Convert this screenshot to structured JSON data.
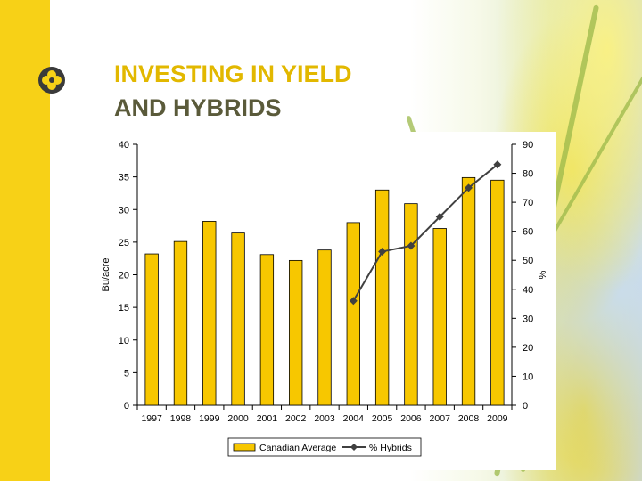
{
  "slide": {
    "title_line1": "INVESTING IN YIELD",
    "title_line2": "AND HYBRIDS",
    "colors": {
      "accent": "#f7d117",
      "title1": "#e2b800",
      "title2": "#5a5a3a"
    }
  },
  "chart_data": {
    "type": "bar",
    "categories": [
      "1997",
      "1998",
      "1999",
      "2000",
      "2001",
      "2002",
      "2003",
      "2004",
      "2005",
      "2006",
      "2007",
      "2008",
      "2009"
    ],
    "ylabel": "Bu/acre",
    "y2label": "%",
    "ylim": [
      0,
      40
    ],
    "y2lim": [
      0,
      90
    ],
    "yticks": [
      0,
      5,
      10,
      15,
      20,
      25,
      30,
      35,
      40
    ],
    "y2ticks": [
      0,
      10,
      20,
      30,
      40,
      50,
      60,
      70,
      80,
      90
    ],
    "legend_position": "bottom",
    "grid": false,
    "series": [
      {
        "name": "Canadian Average",
        "type": "bar",
        "axis": "left",
        "color": "#f7c700",
        "values": [
          23.2,
          25.1,
          28.2,
          26.4,
          23.1,
          22.2,
          23.8,
          28.0,
          33.0,
          30.9,
          27.1,
          34.9,
          34.5
        ]
      },
      {
        "name": "% Hybrids",
        "type": "line",
        "axis": "right",
        "color": "#404040",
        "values": [
          null,
          null,
          null,
          null,
          null,
          null,
          null,
          36,
          53,
          55,
          65,
          75,
          83
        ]
      }
    ]
  }
}
